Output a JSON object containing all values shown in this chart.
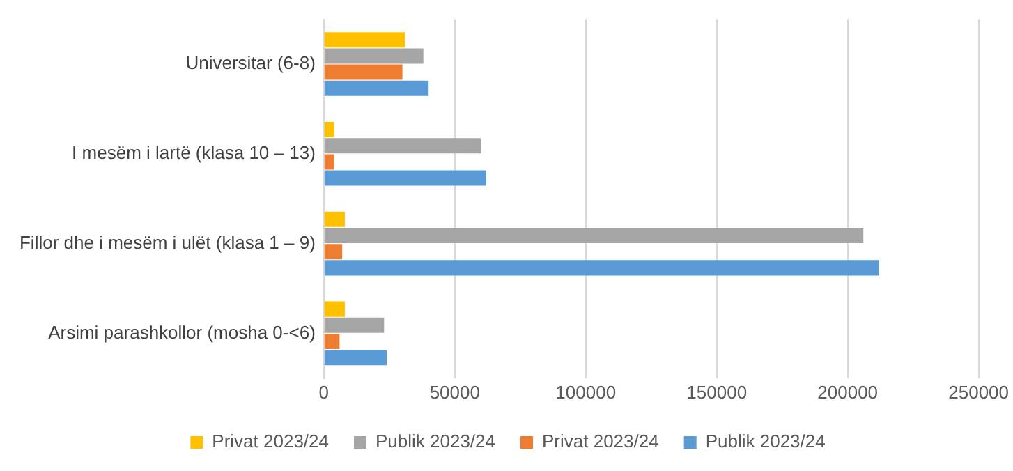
{
  "chart_data": {
    "type": "bar",
    "orientation": "horizontal",
    "categories": [
      "Universitar (6-8)",
      "I mesëm i lartë (klasa 10 – 13)",
      "Fillor dhe i mesëm i ulët (klasa 1 – 9)",
      "Arsimi parashkollor (mosha 0-<6)"
    ],
    "series": [
      {
        "name": "Privat 2023/24",
        "color": "#ffc000",
        "values": [
          31000,
          4000,
          8000,
          8000
        ]
      },
      {
        "name": "Publik 2023/24",
        "color": "#a5a5a5",
        "values": [
          38000,
          60000,
          206000,
          23000
        ]
      },
      {
        "name": "Privat 2023/24",
        "color": "#ed7d31",
        "values": [
          30000,
          4000,
          7000,
          6000
        ]
      },
      {
        "name": "Publik 2023/24",
        "color": "#5b9bd5",
        "values": [
          40000,
          62000,
          212000,
          24000
        ]
      }
    ],
    "xlim": [
      0,
      250000
    ],
    "xticks": [
      0,
      50000,
      100000,
      150000,
      200000,
      250000
    ],
    "grid": "x",
    "legend": "bottom"
  }
}
